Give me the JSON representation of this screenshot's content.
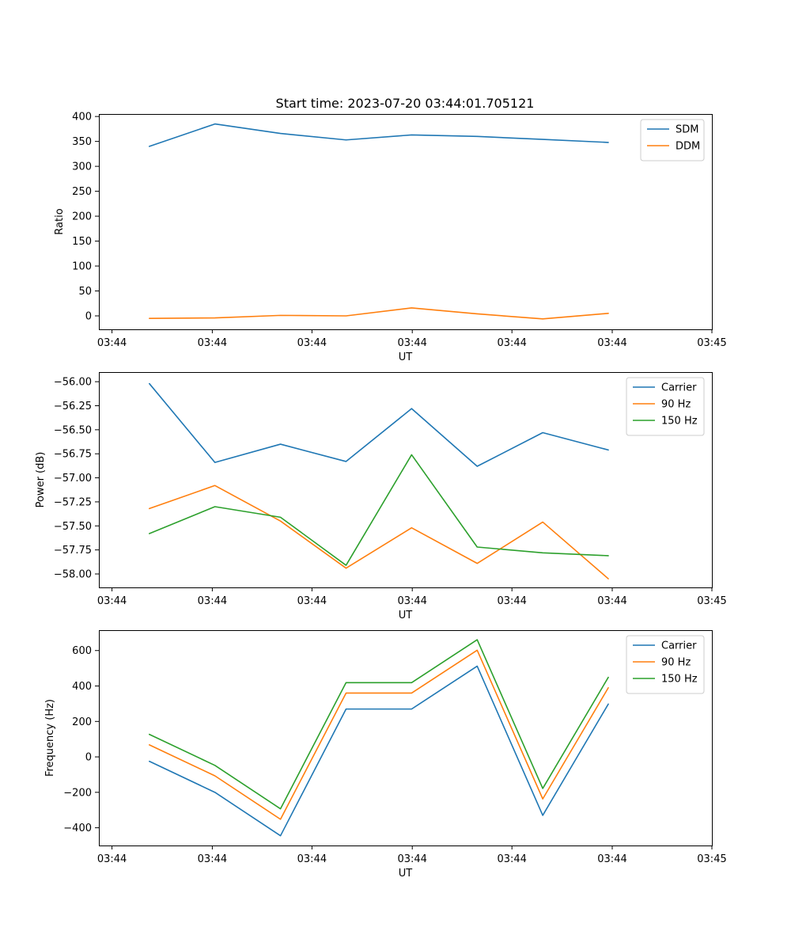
{
  "title": "Start time: 2023-07-20 03:44:01.705121",
  "chart_data": [
    {
      "type": "line",
      "xlabel": "UT",
      "ylabel": "Ratio",
      "x": [
        1,
        2,
        3,
        4,
        5,
        6,
        7,
        8
      ],
      "xlim": [
        0.23,
        9.58
      ],
      "x_ticks": [
        0.43,
        1.96,
        3.48,
        5.01,
        6.53,
        8.06,
        9.58
      ],
      "x_tick_labels": [
        "03:44",
        "03:44",
        "03:44",
        "03:44",
        "03:44",
        "03:44",
        "03:45"
      ],
      "ylim": [
        -27,
        405
      ],
      "y_ticks": [
        0,
        50,
        100,
        150,
        200,
        250,
        300,
        350,
        400
      ],
      "y_tick_labels": [
        "0",
        "50",
        "100",
        "150",
        "200",
        "250",
        "300",
        "350",
        "400"
      ],
      "legend_position": "top-right",
      "series": [
        {
          "name": "SDM",
          "color": "#1f77b4",
          "values": [
            340,
            385,
            366,
            353,
            363,
            360,
            354,
            348
          ]
        },
        {
          "name": "DDM",
          "color": "#ff7f0e",
          "values": [
            -5,
            -4,
            1,
            0,
            16,
            4,
            -6,
            5
          ]
        }
      ]
    },
    {
      "type": "line",
      "xlabel": "UT",
      "ylabel": "Power (dB)",
      "x": [
        1,
        2,
        3,
        4,
        5,
        6,
        7,
        8
      ],
      "xlim": [
        0.23,
        9.58
      ],
      "x_ticks": [
        0.43,
        1.96,
        3.48,
        5.01,
        6.53,
        8.06,
        9.58
      ],
      "x_tick_labels": [
        "03:44",
        "03:44",
        "03:44",
        "03:44",
        "03:44",
        "03:44",
        "03:45"
      ],
      "ylim": [
        -58.14,
        -55.9
      ],
      "y_ticks": [
        -56.0,
        -56.25,
        -56.5,
        -56.75,
        -57.0,
        -57.25,
        -57.5,
        -57.75,
        -58.0
      ],
      "y_tick_labels": [
        "−56.00",
        "−56.25",
        "−56.50",
        "−56.75",
        "−57.00",
        "−57.25",
        "−57.50",
        "−57.75",
        "−58.00"
      ],
      "legend_position": "top-right",
      "series": [
        {
          "name": "Carrier",
          "color": "#1f77b4",
          "values": [
            -56.02,
            -56.84,
            -56.65,
            -56.83,
            -56.28,
            -56.88,
            -56.53,
            -56.71
          ]
        },
        {
          "name": "90 Hz",
          "color": "#ff7f0e",
          "values": [
            -57.32,
            -57.08,
            -57.45,
            -57.94,
            -57.52,
            -57.89,
            -57.46,
            -58.05
          ]
        },
        {
          "name": "150 Hz",
          "color": "#2ca02c",
          "values": [
            -57.58,
            -57.3,
            -57.41,
            -57.91,
            -56.76,
            -57.72,
            -57.78,
            -57.81
          ]
        }
      ]
    },
    {
      "type": "line",
      "xlabel": "UT",
      "ylabel": "Frequency (Hz)",
      "x": [
        1,
        2,
        3,
        4,
        5,
        6,
        7,
        8
      ],
      "xlim": [
        0.23,
        9.58
      ],
      "x_ticks": [
        0.43,
        1.96,
        3.48,
        5.01,
        6.53,
        8.06,
        9.58
      ],
      "x_tick_labels": [
        "03:44",
        "03:44",
        "03:44",
        "03:44",
        "03:44",
        "03:44",
        "03:45"
      ],
      "ylim": [
        -500,
        715
      ],
      "y_ticks": [
        600,
        400,
        200,
        0,
        -200,
        -400
      ],
      "y_tick_labels": [
        "600",
        "400",
        "200",
        "0",
        "−200",
        "−400"
      ],
      "legend_position": "top-right",
      "series": [
        {
          "name": "Carrier",
          "color": "#1f77b4",
          "values": [
            -25,
            -200,
            -445,
            270,
            270,
            512,
            -330,
            298
          ]
        },
        {
          "name": "90 Hz",
          "color": "#ff7f0e",
          "values": [
            68,
            -107,
            -352,
            360,
            360,
            602,
            -237,
            390
          ]
        },
        {
          "name": "150 Hz",
          "color": "#2ca02c",
          "values": [
            127,
            -48,
            -293,
            419,
            419,
            661,
            -178,
            449
          ]
        }
      ]
    }
  ]
}
